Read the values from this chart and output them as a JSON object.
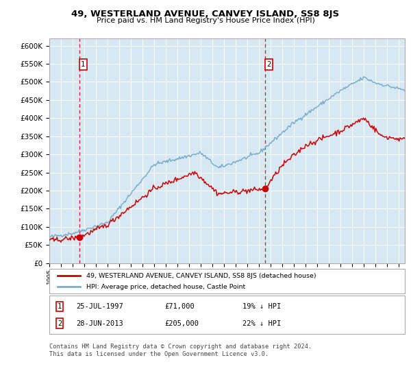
{
  "title": "49, WESTERLAND AVENUE, CANVEY ISLAND, SS8 8JS",
  "subtitle": "Price paid vs. HM Land Registry's House Price Index (HPI)",
  "ylabel_ticks": [
    "£0",
    "£50K",
    "£100K",
    "£150K",
    "£200K",
    "£250K",
    "£300K",
    "£350K",
    "£400K",
    "£450K",
    "£500K",
    "£550K",
    "£600K"
  ],
  "ytick_values": [
    0,
    50000,
    100000,
    150000,
    200000,
    250000,
    300000,
    350000,
    400000,
    450000,
    500000,
    550000,
    600000
  ],
  "ylim": [
    0,
    620000
  ],
  "xlim_start": 1995.0,
  "xlim_end": 2025.5,
  "sale1_date": 1997.56,
  "sale1_price": 71000,
  "sale1_label": "1",
  "sale2_date": 2013.49,
  "sale2_price": 205000,
  "sale2_label": "2",
  "red_line_color": "#cc0000",
  "blue_line_color": "#7aaccc",
  "dashed_line_color": "#cc0000",
  "dot_color": "#cc0000",
  "annotation_box_color": "#cc0000",
  "legend_label_red": "49, WESTERLAND AVENUE, CANVEY ISLAND, SS8 8JS (detached house)",
  "legend_label_blue": "HPI: Average price, detached house, Castle Point",
  "annotation1_date": "25-JUL-1997",
  "annotation1_price": "£71,000",
  "annotation1_hpi": "19% ↓ HPI",
  "annotation2_date": "28-JUN-2013",
  "annotation2_price": "£205,000",
  "annotation2_hpi": "22% ↓ HPI",
  "footer": "Contains HM Land Registry data © Crown copyright and database right 2024.\nThis data is licensed under the Open Government Licence v3.0.",
  "plot_bg_color": "#d8e8f3",
  "fig_bg_color": "#ffffff"
}
